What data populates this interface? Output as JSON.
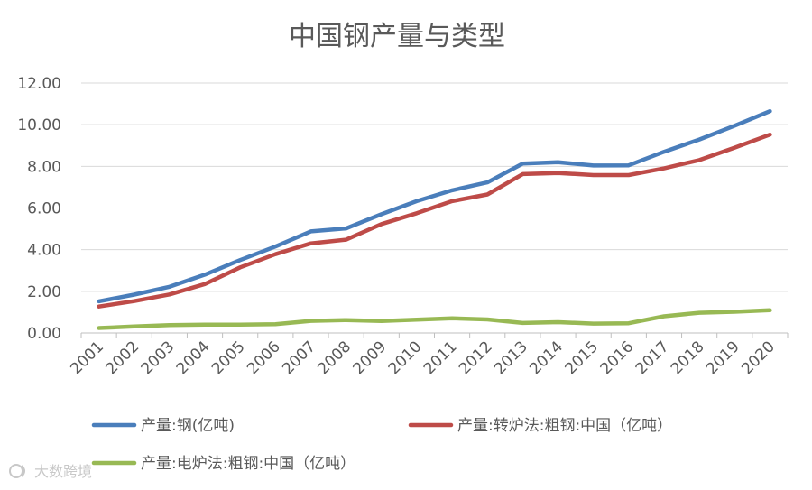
{
  "chart_data": {
    "type": "line",
    "title": "中国钢产量与类型",
    "categories": [
      "2001",
      "2002",
      "2003",
      "2004",
      "2005",
      "2006",
      "2007",
      "2008",
      "2009",
      "2010",
      "2011",
      "2012",
      "2013",
      "2014",
      "2015",
      "2016",
      "2017",
      "2018",
      "2019",
      "2020"
    ],
    "ylim": [
      0,
      12
    ],
    "yticks": [
      "0.00",
      "2.00",
      "4.00",
      "6.00",
      "8.00",
      "10.00",
      "12.00"
    ],
    "grid": true,
    "legend_position": "bottom",
    "series": [
      {
        "name": "产量:钢(亿吨)",
        "color": "#4a7ebb",
        "values": [
          1.52,
          1.84,
          2.22,
          2.8,
          3.5,
          4.15,
          4.88,
          5.02,
          5.7,
          6.33,
          6.85,
          7.23,
          8.13,
          8.2,
          8.04,
          8.05,
          8.7,
          9.29,
          9.95,
          10.65
        ]
      },
      {
        "name": "产量:转炉法:粗钢:中国（亿吨）",
        "color": "#be4b48",
        "values": [
          1.27,
          1.53,
          1.85,
          2.35,
          3.15,
          3.78,
          4.3,
          4.48,
          5.23,
          5.75,
          6.33,
          6.65,
          7.63,
          7.68,
          7.58,
          7.58,
          7.9,
          8.3,
          8.9,
          9.52
        ]
      },
      {
        "name": "产量:电炉法:粗钢:中国（亿吨）",
        "color": "#98b954",
        "values": [
          0.24,
          0.31,
          0.38,
          0.4,
          0.4,
          0.42,
          0.58,
          0.62,
          0.57,
          0.64,
          0.7,
          0.65,
          0.48,
          0.52,
          0.45,
          0.47,
          0.8,
          0.97,
          1.02,
          1.09
        ]
      }
    ]
  },
  "watermark": "大数跨境"
}
